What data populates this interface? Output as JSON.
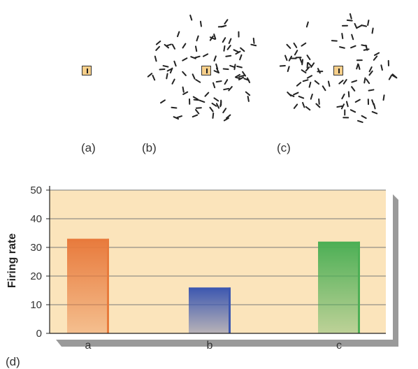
{
  "panels": {
    "a": "(a)",
    "b": "(b)",
    "c": "(c)",
    "d": "(d)"
  },
  "colors": {
    "plot_bg": "#fbe4bb",
    "shadow": "#8c8c8c",
    "rf_fill": "#f6cf8a",
    "bar_a": "#e87a3c",
    "bar_b": "#3c57b0",
    "bar_c": "#4caf55"
  },
  "chart_data": {
    "type": "bar",
    "categories": [
      "a",
      "b",
      "c"
    ],
    "values": [
      33,
      16,
      32
    ],
    "ylabel": "Firing rate",
    "ylim": [
      0,
      50
    ],
    "yticks": [
      "0",
      "10",
      "20",
      "30",
      "40",
      "50"
    ],
    "grid": true
  }
}
